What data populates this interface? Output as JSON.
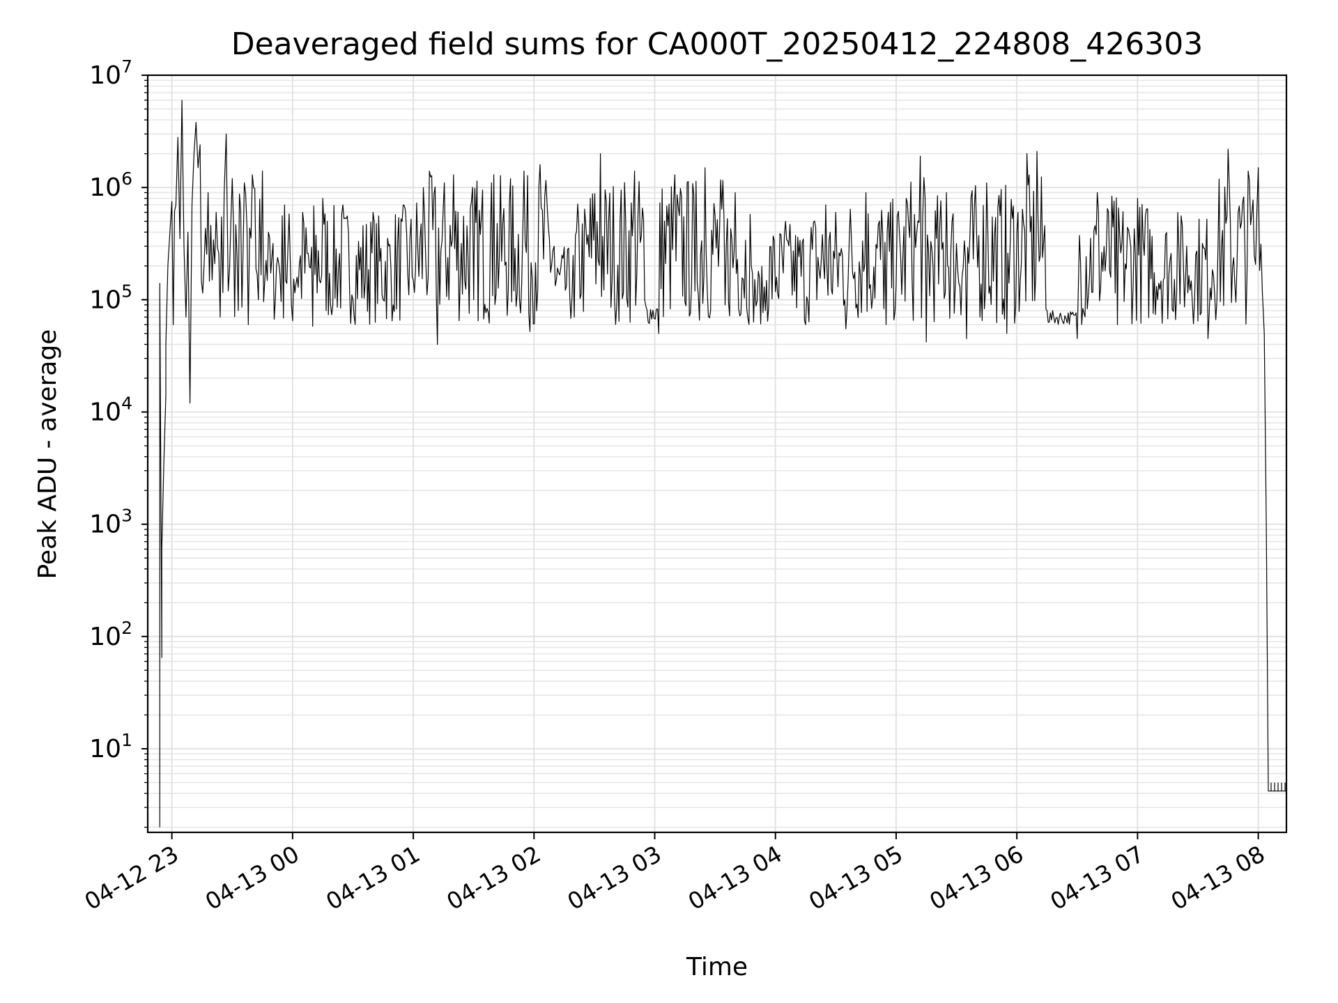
{
  "chart_data": {
    "type": "line",
    "title": "Deaveraged field sums for CA000T_20250412_224808_426303",
    "xlabel": "Time",
    "ylabel": "Peak ADU - average",
    "yscale": "log",
    "ylim": [
      1.8,
      10000000
    ],
    "xlim": [
      "2025-04-12 22:48",
      "2025-04-13 08:14"
    ],
    "grid": true,
    "x_ticks": [
      {
        "label": "04-12 23",
        "t": "2025-04-12 23:00"
      },
      {
        "label": "04-13 00",
        "t": "2025-04-13 00:00"
      },
      {
        "label": "04-13 01",
        "t": "2025-04-13 01:00"
      },
      {
        "label": "04-13 02",
        "t": "2025-04-13 02:00"
      },
      {
        "label": "04-13 03",
        "t": "2025-04-13 03:00"
      },
      {
        "label": "04-13 04",
        "t": "2025-04-13 04:00"
      },
      {
        "label": "04-13 05",
        "t": "2025-04-13 05:00"
      },
      {
        "label": "04-13 06",
        "t": "2025-04-13 06:00"
      },
      {
        "label": "04-13 07",
        "t": "2025-04-13 07:00"
      },
      {
        "label": "04-13 08",
        "t": "2025-04-13 08:00"
      }
    ],
    "y_ticks": [
      {
        "base": "10",
        "exp": "1",
        "value": 10
      },
      {
        "base": "10",
        "exp": "2",
        "value": 100
      },
      {
        "base": "10",
        "exp": "3",
        "value": 1000
      },
      {
        "base": "10",
        "exp": "4",
        "value": 10000
      },
      {
        "base": "10",
        "exp": "5",
        "value": 100000
      },
      {
        "base": "10",
        "exp": "6",
        "value": 1000000
      },
      {
        "base": "10",
        "exp": "7",
        "value": 10000000
      }
    ],
    "series": [
      {
        "color": "#000000",
        "points": [
          [
            "2025-04-12 22:54",
            2
          ],
          [
            "2025-04-12 22:54",
            140000
          ],
          [
            "2025-04-12 22:55",
            65
          ],
          [
            "2025-04-12 22:55",
            600
          ],
          [
            "2025-04-12 22:56",
            3500
          ],
          [
            "2025-04-12 22:57",
            14000
          ],
          [
            "2025-04-12 22:57",
            40000
          ],
          [
            "2025-04-12 22:58",
            200000
          ],
          [
            "2025-04-12 22:59",
            400000
          ],
          [
            "2025-04-12 23:00",
            750000
          ],
          [
            "2025-04-12 23:02",
            700000
          ],
          [
            "2025-04-12 23:03",
            2800000
          ],
          [
            "2025-04-12 23:04",
            350000
          ],
          [
            "2025-04-12 23:05",
            6000000
          ],
          [
            "2025-04-12 23:06",
            300000
          ],
          [
            "2025-04-12 23:07",
            70000
          ],
          [
            "2025-04-12 23:08",
            400000
          ],
          [
            "2025-04-12 23:09",
            12000
          ],
          [
            "2025-04-12 23:10",
            700000
          ],
          [
            "2025-04-12 23:11",
            2000000
          ],
          [
            "2025-04-12 23:12",
            3800000
          ],
          [
            "2025-04-12 23:13",
            1500000
          ],
          [
            "2025-04-12 23:14",
            2400000
          ],
          [
            "2025-04-12 23:16",
            200000
          ],
          [
            "2025-04-12 23:18",
            900000
          ],
          [
            "2025-04-12 23:20",
            150000
          ],
          [
            "2025-04-12 23:22",
            600000
          ],
          [
            "2025-04-12 23:24",
            70000
          ],
          [
            "2025-04-12 23:26",
            900000
          ],
          [
            "2025-04-12 23:27",
            3000000
          ],
          [
            "2025-04-12 23:28",
            120000
          ],
          [
            "2025-04-12 23:30",
            1200000
          ],
          [
            "2025-04-12 23:33",
            80000
          ],
          [
            "2025-04-12 23:36",
            1100000
          ],
          [
            "2025-04-12 23:38",
            60000
          ],
          [
            "2025-04-12 23:40",
            1300000
          ],
          [
            "2025-04-12 23:43",
            100000
          ],
          [
            "2025-04-12 23:45",
            1400000
          ],
          [
            "2025-04-12 23:48",
            400000
          ],
          [
            "2025-04-12 23:52",
            200000
          ],
          [
            "2025-04-12 23:56",
            700000
          ],
          [
            "2025-04-13 00:00",
            65000
          ],
          [
            "2025-04-13 00:05",
            600000
          ],
          [
            "2025-04-13 00:10",
            58000
          ],
          [
            "2025-04-13 00:15",
            800000
          ],
          [
            "2025-04-13 00:20",
            90000
          ],
          [
            "2025-04-13 00:25",
            700000
          ],
          [
            "2025-04-13 00:30",
            100000
          ],
          [
            "2025-04-13 00:40",
            600000
          ],
          [
            "2025-04-13 00:50",
            90000
          ],
          [
            "2025-04-13 00:55",
            700000
          ],
          [
            "2025-04-13 01:00",
            150000
          ],
          [
            "2025-04-13 01:05",
            1000000
          ],
          [
            "2025-04-13 01:08",
            1400000
          ],
          [
            "2025-04-13 01:12",
            40000
          ],
          [
            "2025-04-13 01:20",
            1300000
          ],
          [
            "2025-04-13 01:30",
            100000
          ],
          [
            "2025-04-13 01:40",
            1300000
          ],
          [
            "2025-04-13 01:50",
            120000
          ],
          [
            "2025-04-13 01:55",
            1400000
          ],
          [
            "2025-04-13 01:58",
            52000
          ],
          [
            "2025-04-13 02:03",
            1600000
          ],
          [
            "2025-04-13 02:10",
            300000
          ],
          [
            "2025-04-13 02:20",
            70000
          ],
          [
            "2025-04-13 02:28",
            800000
          ],
          [
            "2025-04-13 02:33",
            2000000
          ],
          [
            "2025-04-13 02:40",
            100000
          ],
          [
            "2025-04-13 02:50",
            1400000
          ],
          [
            "2025-04-13 02:55",
            100000
          ],
          [
            "2025-04-13 03:02",
            50000
          ],
          [
            "2025-04-13 03:10",
            1300000
          ],
          [
            "2025-04-13 03:20",
            120000
          ],
          [
            "2025-04-13 03:25",
            1500000
          ],
          [
            "2025-04-13 03:35",
            90000
          ],
          [
            "2025-04-13 03:40",
            900000
          ],
          [
            "2025-04-13 03:48",
            200000
          ],
          [
            "2025-04-13 03:55",
            80000
          ],
          [
            "2025-04-13 04:05",
            500000
          ],
          [
            "2025-04-13 04:15",
            60000
          ],
          [
            "2025-04-13 04:25",
            700000
          ],
          [
            "2025-04-13 04:35",
            55000
          ],
          [
            "2025-04-13 04:45",
            900000
          ],
          [
            "2025-04-13 04:55",
            60000
          ],
          [
            "2025-04-13 05:05",
            800000
          ],
          [
            "2025-04-13 05:12",
            1900000
          ],
          [
            "2025-04-13 05:15",
            42000
          ],
          [
            "2025-04-13 05:25",
            900000
          ],
          [
            "2025-04-13 05:35",
            45000
          ],
          [
            "2025-04-13 05:45",
            1100000
          ],
          [
            "2025-04-13 05:55",
            50000
          ],
          [
            "2025-04-13 06:05",
            2000000
          ],
          [
            "2025-04-13 06:10",
            2100000
          ],
          [
            "2025-04-13 06:15",
            80000
          ],
          [
            "2025-04-13 06:30",
            45000
          ],
          [
            "2025-04-13 06:40",
            900000
          ],
          [
            "2025-04-13 06:50",
            60000
          ],
          [
            "2025-04-13 07:00",
            800000
          ],
          [
            "2025-04-13 07:10",
            100000
          ],
          [
            "2025-04-13 07:20",
            600000
          ],
          [
            "2025-04-13 07:35",
            45000
          ],
          [
            "2025-04-13 07:45",
            2200000
          ],
          [
            "2025-04-13 07:50",
            600000
          ],
          [
            "2025-04-13 07:55",
            1400000
          ],
          [
            "2025-04-13 07:58",
            250000
          ],
          [
            "2025-04-13 08:00",
            1500000
          ],
          [
            "2025-04-13 08:02",
            120000
          ],
          [
            "2025-04-13 08:03",
            50000
          ],
          [
            "2025-04-13 08:04",
            1000
          ],
          [
            "2025-04-13 08:05",
            4.2
          ],
          [
            "2025-04-13 08:14",
            4.2
          ]
        ]
      }
    ]
  }
}
